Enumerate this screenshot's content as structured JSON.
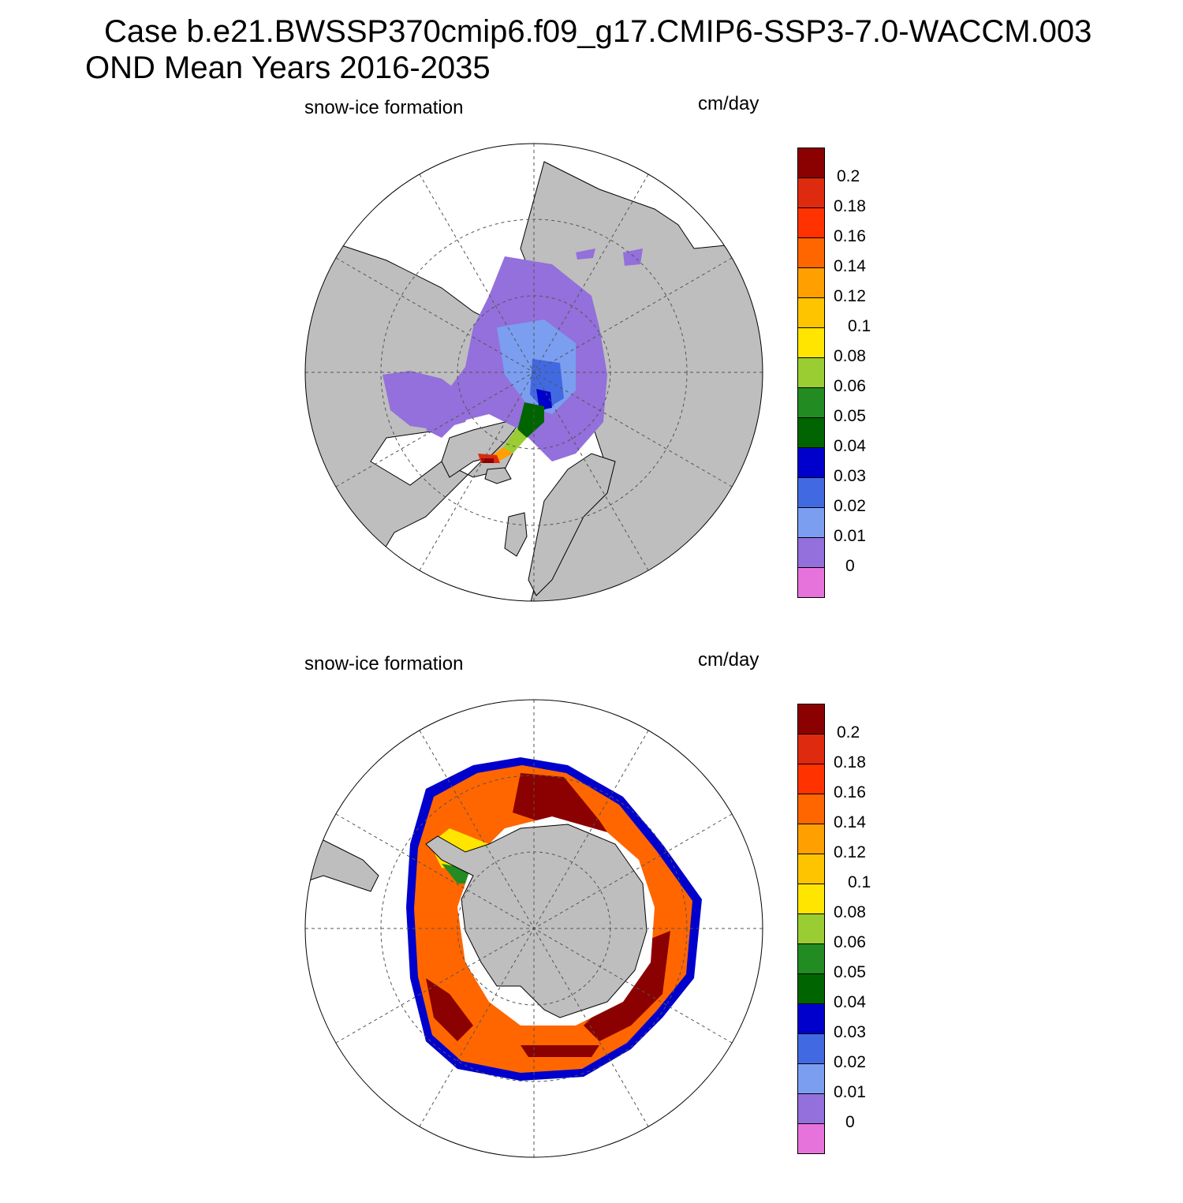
{
  "header": {
    "title_line1": "Case b.e21.BWSSP370cmip6.f09_g17.CMIP6-SSP3-7.0-WACCM.003",
    "title_line2": "OND Mean   Years 2016-2035"
  },
  "panels": [
    {
      "id": "north",
      "left_label": "snow-ice formation",
      "right_label": "cm/day",
      "colors": {
        "land": "#bebebe",
        "ocean": "#ffffff"
      }
    },
    {
      "id": "south",
      "left_label": "snow-ice formation",
      "right_label": "cm/day",
      "colors": {
        "land": "#bebebe",
        "ocean": "#ffffff"
      }
    }
  ],
  "colorbar": {
    "colors": [
      "#e673dc",
      "#9370db",
      "#7b9ef0",
      "#4169e1",
      "#0000cd",
      "#006400",
      "#228b22",
      "#9acd32",
      "#ffe500",
      "#ffc400",
      "#ffa000",
      "#ff6600",
      "#ff3200",
      "#de2a0f",
      "#8b0000"
    ],
    "ticks": [
      "0",
      "0.01",
      "0.02",
      "0.03",
      "0.04",
      "0.05",
      "0.06",
      "0.08",
      "0.1",
      "0.12",
      "0.14",
      "0.16",
      "0.18",
      "0.2"
    ]
  }
}
